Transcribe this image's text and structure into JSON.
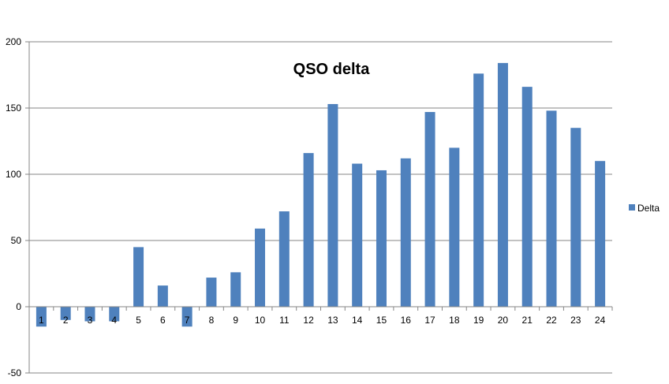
{
  "chart_data": {
    "type": "bar",
    "title": "QSO delta",
    "xlabel": "",
    "ylabel": "",
    "categories": [
      "1",
      "2",
      "3",
      "4",
      "5",
      "6",
      "7",
      "8",
      "9",
      "10",
      "11",
      "12",
      "13",
      "14",
      "15",
      "16",
      "17",
      "18",
      "19",
      "20",
      "21",
      "22",
      "23",
      "24"
    ],
    "series": [
      {
        "name": "Delta",
        "color": "#4f81bd",
        "values": [
          -15,
          -10,
          -11,
          -11,
          45,
          16,
          -15,
          22,
          26,
          59,
          72,
          116,
          153,
          108,
          103,
          112,
          147,
          120,
          176,
          184,
          166,
          148,
          135,
          110
        ]
      }
    ],
    "ylim": [
      -50,
      200
    ],
    "yticks": [
      -50,
      0,
      50,
      100,
      150,
      200
    ],
    "grid": true,
    "legend_position": "right"
  }
}
